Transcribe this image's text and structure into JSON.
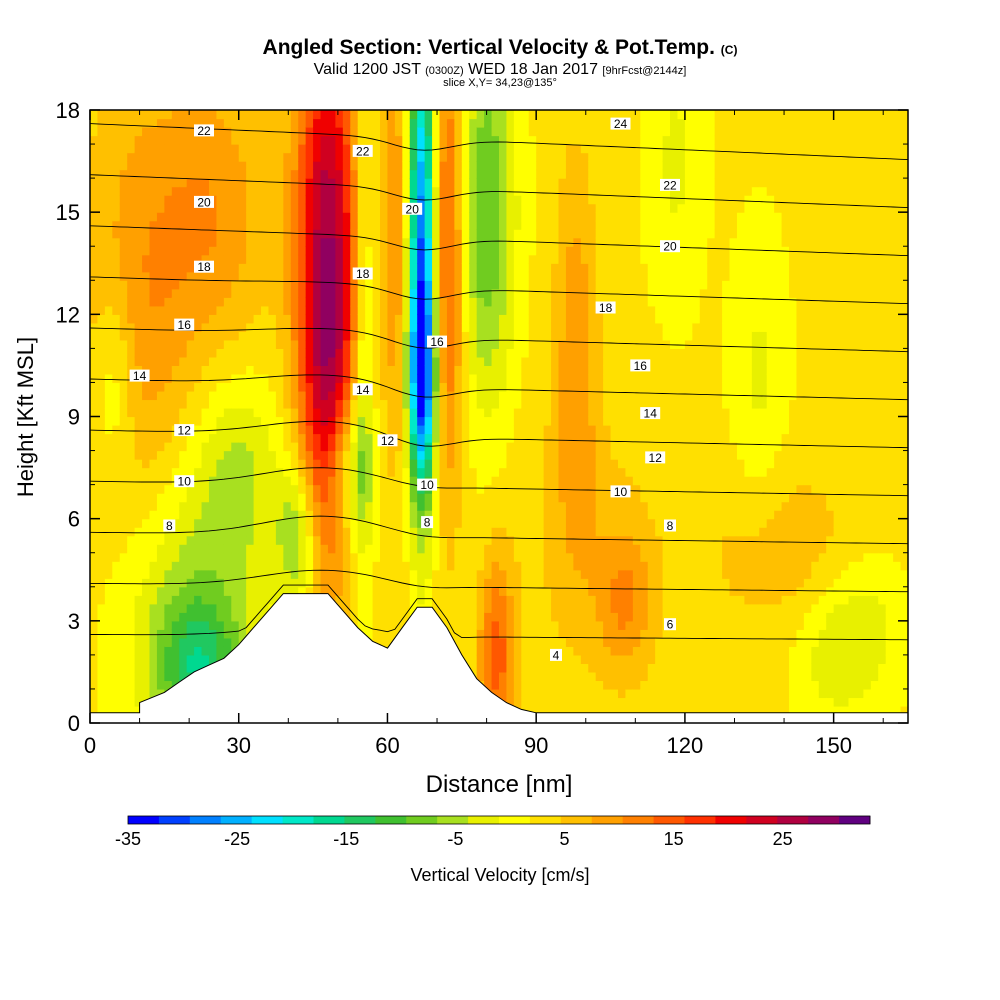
{
  "titles": {
    "main": "Angled Section: Vertical Velocity & Pot.Temp.",
    "main_unit": "(C)",
    "valid_prefix": "Valid 1200 JST",
    "valid_z": "(0300Z)",
    "valid_date": "WED 18 Jan 2017",
    "forecast": "[9hrFcst@2144z]",
    "slice": "slice X,Y= 34,23@135°"
  },
  "chart_data": {
    "type": "heatmap",
    "xlabel": "Distance [nm]",
    "ylabel": "Height [Kft MSL]",
    "xlim": [
      0,
      165
    ],
    "ylim": [
      0,
      18
    ],
    "xticks": [
      0,
      30,
      60,
      90,
      120,
      150
    ],
    "yticks": [
      0,
      3,
      6,
      9,
      12,
      15,
      18
    ],
    "colorbar": {
      "label": "Vertical Velocity [cm/s]",
      "min": -35,
      "max": 33,
      "tick_values": [
        -35,
        -25,
        -15,
        -5,
        5,
        15,
        25
      ],
      "tick_labels": [
        "-35",
        "-25",
        "-15",
        "-5",
        "5",
        "15",
        "25"
      ],
      "colors": [
        "#0000ff",
        "#0040ff",
        "#0080ff",
        "#00b0ff",
        "#00e0ff",
        "#00e8c8",
        "#00d890",
        "#20c860",
        "#40c030",
        "#70cc20",
        "#a8e020",
        "#e8f000",
        "#ffff00",
        "#ffe000",
        "#ffc000",
        "#ffa000",
        "#ff8000",
        "#ff5800",
        "#ff3000",
        "#f00000",
        "#d00020",
        "#b00040",
        "#900060",
        "#600080"
      ]
    },
    "terrain_profile": {
      "x": [
        0,
        10,
        10,
        15,
        18,
        21,
        24,
        27,
        30,
        33,
        36,
        39,
        42,
        45,
        48,
        51,
        54,
        57,
        60,
        63,
        66,
        69,
        72,
        75,
        78,
        81,
        84,
        87,
        90,
        165
      ],
      "height": [
        0.3,
        0.3,
        0.6,
        0.9,
        1.2,
        1.5,
        1.7,
        1.9,
        2.3,
        2.8,
        3.3,
        3.8,
        3.8,
        3.8,
        3.8,
        3.3,
        2.8,
        2.4,
        2.2,
        2.8,
        3.4,
        3.4,
        2.8,
        2.0,
        1.3,
        0.9,
        0.6,
        0.4,
        0.3,
        0.3
      ]
    },
    "velocity_features": [
      {
        "x": 48,
        "z": 14.0,
        "value": 24,
        "sx": 4.5,
        "sz": 5.0
      },
      {
        "x": 48,
        "z": 8.0,
        "value": 10,
        "sx": 3.5,
        "sz": 3.0
      },
      {
        "x": 52,
        "z": 7.5,
        "value": -12,
        "sx": 3.5,
        "sz": 1.5
      },
      {
        "x": 42,
        "z": 5.5,
        "value": -10,
        "sx": 3.0,
        "sz": 1.5
      },
      {
        "x": 55,
        "z": 12.0,
        "value": -8,
        "sx": 1.5,
        "sz": 6.0
      },
      {
        "x": 67,
        "z": 14.0,
        "value": -32,
        "sx": 2.0,
        "sz": 5.0
      },
      {
        "x": 67,
        "z": 10.0,
        "value": -18,
        "sx": 2.0,
        "sz": 2.0
      },
      {
        "x": 72,
        "z": 14.0,
        "value": 14,
        "sx": 2.5,
        "sz": 5.0
      },
      {
        "x": 80,
        "z": 15.0,
        "value": -12,
        "sx": 4.0,
        "sz": 4.0
      },
      {
        "x": 62,
        "z": 14.0,
        "value": 8,
        "sx": 2.0,
        "sz": 5.0
      },
      {
        "x": 20,
        "z": 3.5,
        "value": -8,
        "sx": 10.0,
        "sz": 3.0
      },
      {
        "x": 22,
        "z": 1.5,
        "value": -12,
        "sx": 6.0,
        "sz": 1.5
      },
      {
        "x": 30,
        "z": 7.5,
        "value": -6,
        "sx": 6.0,
        "sz": 2.0
      },
      {
        "x": 5,
        "z": 10.0,
        "value": -6,
        "sx": 3.0,
        "sz": 2.0
      },
      {
        "x": 10,
        "z": 12.0,
        "value": 7,
        "sx": 8.0,
        "sz": 5.0
      },
      {
        "x": 25,
        "z": 15.0,
        "value": 7,
        "sx": 8.0,
        "sz": 3.0
      },
      {
        "x": 135,
        "z": 10.0,
        "value": -4,
        "sx": 4.0,
        "sz": 3.0
      },
      {
        "x": 150,
        "z": 2.0,
        "value": -5,
        "sx": 6.0,
        "sz": 1.5
      },
      {
        "x": 157,
        "z": 3.0,
        "value": -4,
        "sx": 6.0,
        "sz": 1.5
      },
      {
        "x": 108,
        "z": 3.5,
        "value": 7,
        "sx": 4.0,
        "sz": 1.5
      },
      {
        "x": 82,
        "z": 2.0,
        "value": 12,
        "sx": 2.5,
        "sz": 2.0
      },
      {
        "x": 118,
        "z": 16.5,
        "value": -4,
        "sx": 4.0,
        "sz": 3.0
      },
      {
        "x": 98,
        "z": 11.0,
        "value": 7,
        "sx": 3.0,
        "sz": 4.0
      },
      {
        "x": 100,
        "z": 5.5,
        "value": 3,
        "sx": 10.0,
        "sz": 3.0
      },
      {
        "x": 140,
        "z": 5.0,
        "value": 4,
        "sx": 12.0,
        "sz": 2.0
      }
    ],
    "theta_contours": {
      "levels": [
        4,
        6,
        8,
        10,
        12,
        14,
        16,
        18,
        20,
        22,
        24
      ],
      "labels": [
        {
          "text": "22",
          "x": 23,
          "z": 17.4
        },
        {
          "text": "22",
          "x": 55,
          "z": 16.8
        },
        {
          "text": "24",
          "x": 107,
          "z": 17.6
        },
        {
          "text": "22",
          "x": 117,
          "z": 15.8
        },
        {
          "text": "20",
          "x": 23,
          "z": 15.3
        },
        {
          "text": "20",
          "x": 65,
          "z": 15.1
        },
        {
          "text": "20",
          "x": 117,
          "z": 14.0
        },
        {
          "text": "18",
          "x": 23,
          "z": 13.4
        },
        {
          "text": "18",
          "x": 55,
          "z": 13.2
        },
        {
          "text": "18",
          "x": 104,
          "z": 12.2
        },
        {
          "text": "16",
          "x": 19,
          "z": 11.7
        },
        {
          "text": "16",
          "x": 70,
          "z": 11.2
        },
        {
          "text": "16",
          "x": 111,
          "z": 10.5
        },
        {
          "text": "14",
          "x": 10,
          "z": 10.2
        },
        {
          "text": "14",
          "x": 55,
          "z": 9.8
        },
        {
          "text": "14",
          "x": 113,
          "z": 9.1
        },
        {
          "text": "12",
          "x": 19,
          "z": 8.6
        },
        {
          "text": "12",
          "x": 60,
          "z": 8.3
        },
        {
          "text": "12",
          "x": 114,
          "z": 7.8
        },
        {
          "text": "10",
          "x": 19,
          "z": 7.1
        },
        {
          "text": "10",
          "x": 68,
          "z": 7.0
        },
        {
          "text": "10",
          "x": 107,
          "z": 6.8
        },
        {
          "text": "8",
          "x": 16,
          "z": 5.8
        },
        {
          "text": "8",
          "x": 68,
          "z": 5.9
        },
        {
          "text": "8",
          "x": 117,
          "z": 5.8
        },
        {
          "text": "6",
          "x": 117,
          "z": 2.9
        },
        {
          "text": "4",
          "x": 94,
          "z": 2.0
        }
      ]
    }
  }
}
